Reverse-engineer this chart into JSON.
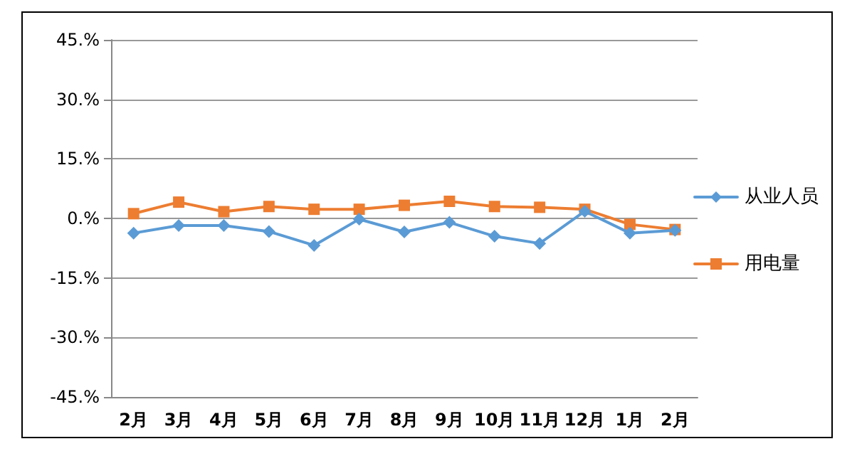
{
  "chart_data": {
    "type": "line",
    "categories": [
      "2月",
      "3月",
      "4月",
      "5月",
      "6月",
      "7月",
      "8月",
      "9月",
      "10月",
      "11月",
      "12月",
      "1月",
      "2月"
    ],
    "series": [
      {
        "name": "从业人员",
        "color": "#5b9bd5",
        "marker": "diamond",
        "values": [
          -3.7,
          -1.8,
          -1.8,
          -3.3,
          -6.8,
          -0.2,
          -3.4,
          -1.0,
          -4.5,
          -6.3,
          1.8,
          -3.7,
          -3.0
        ]
      },
      {
        "name": "用电量",
        "color": "#ed7d31",
        "marker": "square",
        "values": [
          1.2,
          4.1,
          1.7,
          3.0,
          2.3,
          2.3,
          3.3,
          4.3,
          3.0,
          2.8,
          2.3,
          -1.5,
          -2.8
        ]
      }
    ],
    "ylim": [
      -45,
      45
    ],
    "yticks": [
      {
        "value": -45,
        "label": "-45.%"
      },
      {
        "value": -30,
        "label": "-30.%"
      },
      {
        "value": -15,
        "label": "-15.%"
      },
      {
        "value": 0,
        "label": "0.%"
      },
      {
        "value": 15,
        "label": "15.%"
      },
      {
        "value": 30,
        "label": "30.%"
      },
      {
        "value": 45,
        "label": "45.%"
      }
    ],
    "grid": "y",
    "legend": "right",
    "line_style": "solid"
  }
}
